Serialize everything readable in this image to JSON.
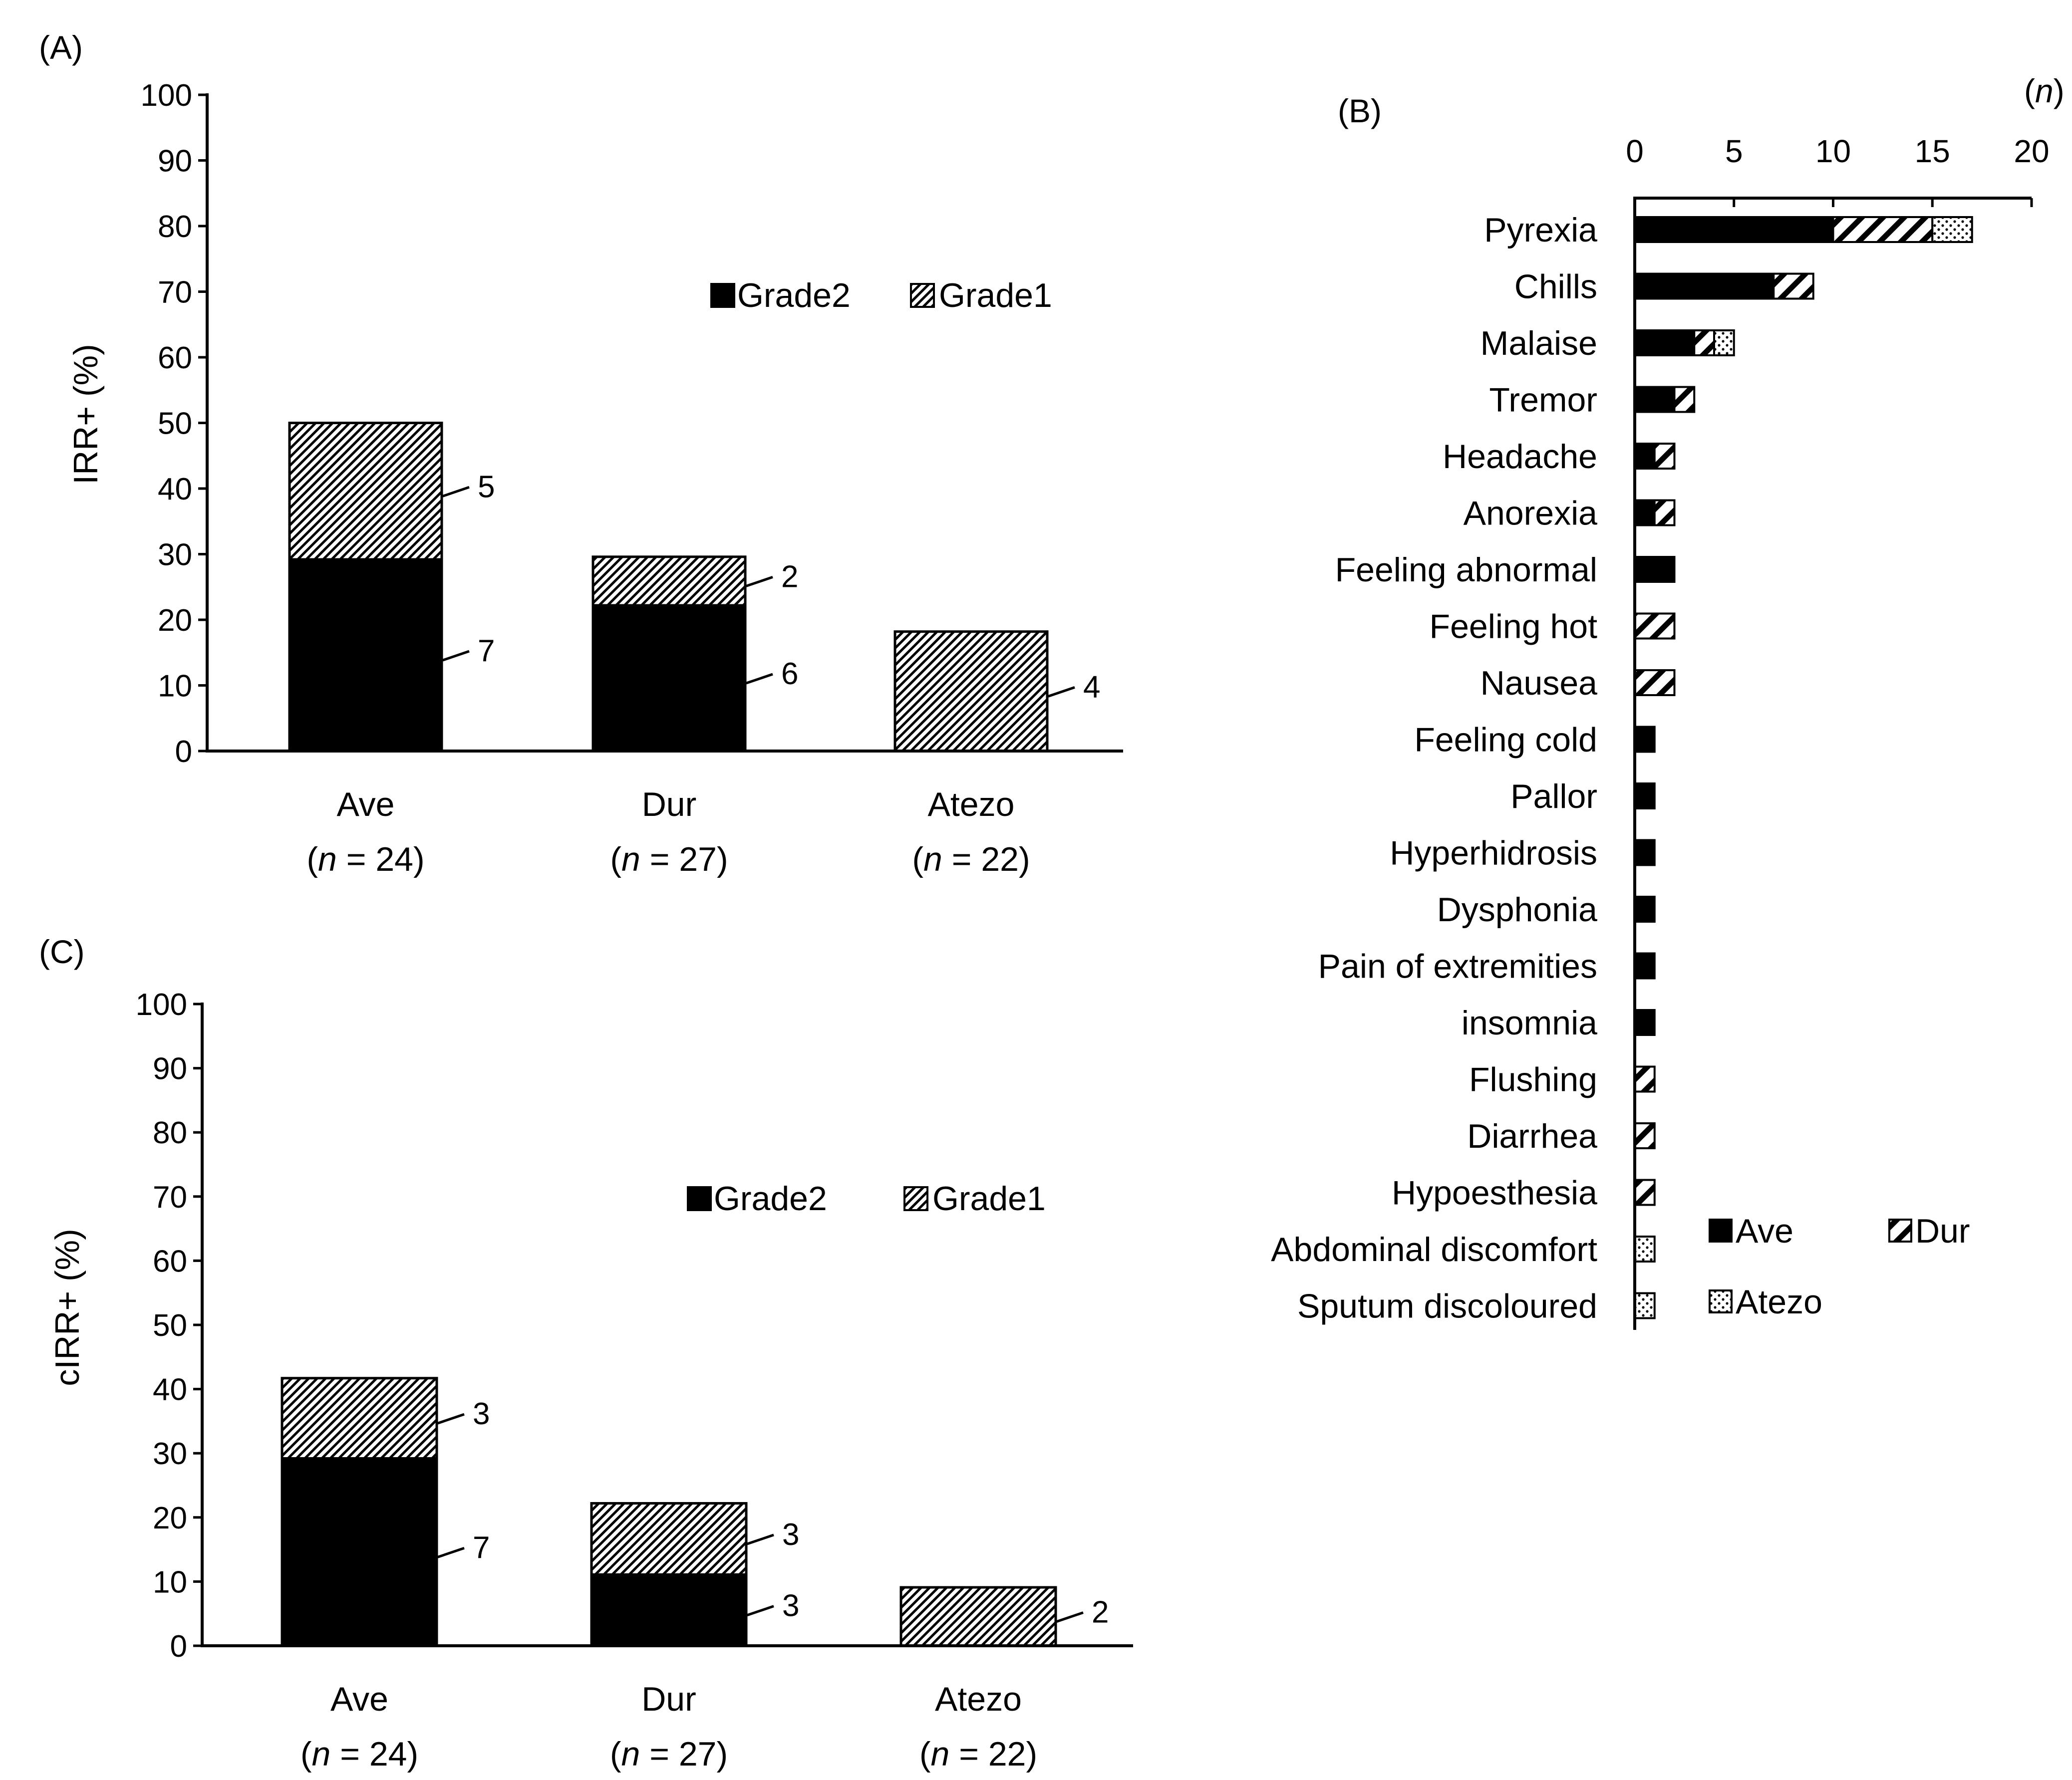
{
  "colors": {
    "ink": "#000000",
    "paper": "#ffffff"
  },
  "chart_data": [
    {
      "panel_label": "(A)",
      "type": "bar",
      "stacked": true,
      "ylabel": "IRR+ (%)",
      "ylim": [
        0,
        100
      ],
      "yticks": [
        "0",
        "10",
        "20",
        "30",
        "40",
        "50",
        "60",
        "70",
        "80",
        "90",
        "100"
      ],
      "categories": [
        "Ave",
        "Dur",
        "Atezo"
      ],
      "category_n": [
        "(n = 24)",
        "(n = 27)",
        "(n = 22)"
      ],
      "legend": [
        "Grade2",
        "Grade1"
      ],
      "series": [
        {
          "name": "Grade2",
          "values": [
            29.2,
            22.2,
            0
          ],
          "counts": [
            "7",
            "6",
            ""
          ]
        },
        {
          "name": "Grade1",
          "values": [
            20.8,
            7.4,
            18.2
          ],
          "counts": [
            "5",
            "2",
            "4"
          ]
        }
      ]
    },
    {
      "panel_label": "(B)",
      "type": "bar",
      "orientation": "horizontal",
      "stacked": true,
      "xlabel": "(n)",
      "xlim": [
        0,
        20
      ],
      "xticks": [
        "0",
        "5",
        "10",
        "15",
        "20"
      ],
      "categories": [
        "Pyrexia",
        "Chills",
        "Malaise",
        "Tremor",
        "Headache",
        "Anorexia",
        "Feeling abnormal",
        "Feeling hot",
        "Nausea",
        "Feeling cold",
        "Pallor",
        "Hyperhidrosis",
        "Dysphonia",
        "Pain of extremities",
        "insomnia",
        "Flushing",
        "Diarrhea",
        "Hypoesthesia",
        "Abdominal discomfort",
        "Sputum discoloured"
      ],
      "legend": [
        "Ave",
        "Dur",
        "Atezo"
      ],
      "series": [
        {
          "name": "Ave",
          "values": [
            10,
            7,
            3,
            2,
            1,
            1,
            2,
            0,
            0,
            1,
            1,
            1,
            1,
            1,
            1,
            0,
            0,
            0,
            0,
            0
          ]
        },
        {
          "name": "Dur",
          "values": [
            5,
            2,
            1,
            1,
            1,
            1,
            0,
            2,
            2,
            0,
            0,
            0,
            0,
            0,
            0,
            1,
            1,
            1,
            0,
            0
          ]
        },
        {
          "name": "Atezo",
          "values": [
            2,
            0,
            1,
            0,
            0,
            0,
            0,
            0,
            0,
            0,
            0,
            0,
            0,
            0,
            0,
            0,
            0,
            0,
            1,
            1
          ]
        }
      ]
    },
    {
      "panel_label": "(C)",
      "type": "bar",
      "stacked": true,
      "ylabel": "cIRR+ (%)",
      "ylim": [
        0,
        100
      ],
      "yticks": [
        "0",
        "10",
        "20",
        "30",
        "40",
        "50",
        "60",
        "70",
        "80",
        "90",
        "100"
      ],
      "categories": [
        "Ave",
        "Dur",
        "Atezo"
      ],
      "category_n": [
        "(n = 24)",
        "(n = 27)",
        "(n = 22)"
      ],
      "legend": [
        "Grade2",
        "Grade1"
      ],
      "series": [
        {
          "name": "Grade2",
          "values": [
            29.2,
            11.1,
            0
          ],
          "counts": [
            "7",
            "3",
            ""
          ]
        },
        {
          "name": "Grade1",
          "values": [
            12.5,
            11.1,
            9.1
          ],
          "counts": [
            "3",
            "3",
            "2"
          ]
        }
      ]
    }
  ]
}
